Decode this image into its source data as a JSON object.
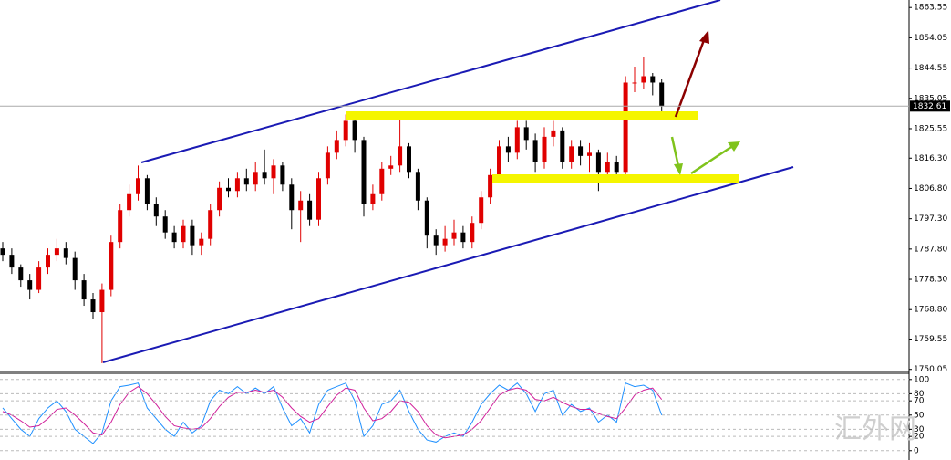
{
  "chart_data": [
    {
      "type": "candlestick",
      "up_color": "#e00000",
      "down_color": "#000000",
      "last_price": 1832.61,
      "ylim": [
        1749.4,
        1865.9
      ],
      "yticks": [
        {
          "value": 1863.55,
          "label": "1863.55"
        },
        {
          "value": 1854.05,
          "label": "1854.05"
        },
        {
          "value": 1844.55,
          "label": "1844.55"
        },
        {
          "value": 1835.05,
          "label": "1835.05"
        },
        {
          "value": 1825.55,
          "label": "1825.55"
        },
        {
          "value": 1816.3,
          "label": "1816.30"
        },
        {
          "value": 1806.8,
          "label": "1806.80"
        },
        {
          "value": 1797.3,
          "label": "1797.30"
        },
        {
          "value": 1787.8,
          "label": "1787.80"
        },
        {
          "value": 1778.3,
          "label": "1778.30"
        },
        {
          "value": 1768.8,
          "label": "1768.80"
        },
        {
          "value": 1759.55,
          "label": "1759.55"
        },
        {
          "value": 1750.05,
          "label": "1750.05"
        }
      ],
      "open": [
        1788,
        1786,
        1782,
        1778,
        1775,
        1782,
        1786,
        1788,
        1785,
        1778,
        1772,
        1768,
        1775,
        1790,
        1800,
        1805,
        1810,
        1802,
        1798,
        1793,
        1790,
        1795,
        1789,
        1791,
        1800,
        1807,
        1806,
        1810,
        1808,
        1812,
        1810,
        1814,
        1808,
        1800,
        1803,
        1797,
        1810,
        1818,
        1822,
        1828,
        1822,
        1802,
        1805,
        1813,
        1814,
        1820,
        1812,
        1803,
        1792,
        1789,
        1791,
        1793,
        1790,
        1796,
        1804,
        1811,
        1820,
        1818,
        1826,
        1822,
        1815,
        1823,
        1825,
        1815,
        1820,
        1817,
        1818,
        1812,
        1815,
        1812,
        1840,
        1840,
        1842,
        1840
      ],
      "high": [
        1790,
        1788,
        1783,
        1780,
        1784,
        1788,
        1791,
        1790,
        1787,
        1780,
        1774,
        1777,
        1792,
        1802,
        1808,
        1814,
        1811,
        1804,
        1800,
        1795,
        1797,
        1797,
        1793,
        1802,
        1809,
        1810,
        1812,
        1813,
        1815,
        1819,
        1816,
        1815,
        1810,
        1806,
        1805,
        1812,
        1820,
        1825,
        1830,
        1829,
        1823,
        1808,
        1815,
        1817,
        1829,
        1821,
        1813,
        1804,
        1794,
        1795,
        1797,
        1795,
        1798,
        1806,
        1813,
        1822,
        1823,
        1828,
        1828,
        1824,
        1826,
        1828,
        1826,
        1822,
        1822,
        1821,
        1819,
        1818,
        1817,
        1842,
        1845,
        1848,
        1843,
        1841
      ],
      "low": [
        1784,
        1780,
        1776,
        1772,
        1774,
        1780,
        1784,
        1783,
        1775,
        1770,
        1766,
        1752,
        1773,
        1788,
        1798,
        1803,
        1800,
        1795,
        1791,
        1788,
        1788,
        1786,
        1786,
        1789,
        1798,
        1804,
        1804,
        1806,
        1806,
        1808,
        1805,
        1806,
        1794,
        1790,
        1795,
        1795,
        1808,
        1816,
        1820,
        1818,
        1798,
        1800,
        1803,
        1811,
        1812,
        1810,
        1800,
        1788,
        1786,
        1787,
        1789,
        1788,
        1788,
        1794,
        1802,
        1809,
        1815,
        1816,
        1819,
        1812,
        1813,
        1820,
        1813,
        1813,
        1814,
        1812,
        1806,
        1810,
        1810,
        1811,
        1837,
        1838,
        1836,
        1831
      ],
      "close": [
        1786,
        1782,
        1778,
        1775,
        1782,
        1786,
        1788,
        1785,
        1778,
        1772,
        1768,
        1775,
        1790,
        1800,
        1805,
        1810,
        1802,
        1798,
        1793,
        1790,
        1795,
        1789,
        1791,
        1800,
        1807,
        1806,
        1810,
        1808,
        1812,
        1810,
        1814,
        1808,
        1800,
        1803,
        1797,
        1810,
        1818,
        1822,
        1828,
        1822,
        1802,
        1805,
        1813,
        1814,
        1820,
        1812,
        1803,
        1792,
        1789,
        1791,
        1793,
        1790,
        1796,
        1804,
        1811,
        1820,
        1818,
        1826,
        1822,
        1815,
        1823,
        1825,
        1815,
        1820,
        1817,
        1818,
        1812,
        1815,
        1812,
        1840,
        1840,
        1842,
        1840,
        1832.61
      ]
    },
    {
      "type": "line",
      "ylim": [
        -8,
        110
      ],
      "yticks": [
        100,
        80,
        70,
        50,
        30,
        20,
        0
      ],
      "grid": "dashed",
      "series": [
        {
          "color": "#1e90ff",
          "values": [
            60,
            45,
            30,
            20,
            45,
            60,
            70,
            55,
            30,
            20,
            10,
            25,
            70,
            90,
            92,
            95,
            60,
            45,
            30,
            20,
            40,
            25,
            35,
            70,
            85,
            80,
            90,
            80,
            88,
            80,
            90,
            60,
            35,
            45,
            25,
            65,
            85,
            90,
            95,
            70,
            20,
            35,
            65,
            70,
            85,
            55,
            30,
            15,
            12,
            20,
            25,
            20,
            40,
            65,
            80,
            92,
            85,
            95,
            80,
            55,
            80,
            85,
            50,
            65,
            55,
            60,
            40,
            50,
            40,
            95,
            90,
            92,
            85,
            50
          ]
        },
        {
          "color": "#d0209a",
          "values": [
            55,
            50,
            42,
            33,
            35,
            45,
            58,
            60,
            50,
            38,
            25,
            22,
            40,
            65,
            82,
            90,
            80,
            65,
            48,
            35,
            32,
            30,
            32,
            45,
            62,
            75,
            82,
            82,
            85,
            82,
            85,
            75,
            60,
            48,
            40,
            45,
            62,
            78,
            88,
            85,
            60,
            42,
            45,
            55,
            70,
            68,
            55,
            35,
            22,
            18,
            20,
            22,
            30,
            42,
            60,
            78,
            85,
            88,
            85,
            72,
            70,
            75,
            68,
            62,
            58,
            58,
            52,
            48,
            45,
            60,
            78,
            85,
            88,
            72
          ]
        }
      ]
    }
  ],
  "watermark": "汇外网"
}
